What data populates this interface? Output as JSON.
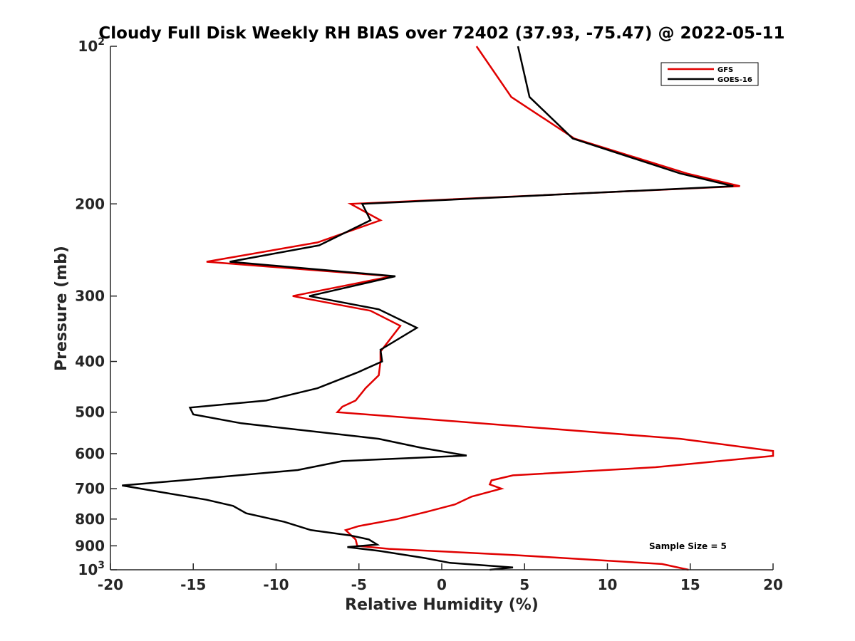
{
  "chart_data": {
    "type": "line",
    "title": "Cloudy Full Disk Weekly RH BIAS over 72402 (37.93, -75.47) @ 2022-05-11",
    "xlabel": "Relative Humidity (%)",
    "ylabel": "Pressure (mb)",
    "xlim": [
      -20,
      20
    ],
    "ylim": [
      100,
      1000
    ],
    "y_scale": "log",
    "y_reversed": true,
    "grid": false,
    "legend_position": "top-right",
    "x_ticks": [
      "-20",
      "-15",
      "-10",
      "-5",
      "0",
      "5",
      "10",
      "15",
      "20"
    ],
    "x_tick_values": [
      -20,
      -15,
      -10,
      -5,
      0,
      5,
      10,
      15,
      20
    ],
    "y_tick_values": [
      100,
      200,
      300,
      400,
      500,
      600,
      700,
      800,
      900,
      1000
    ],
    "y_tick_labels": [
      {
        "base": "10",
        "exp": "2"
      },
      {
        "base": "200",
        "exp": ""
      },
      {
        "base": "300",
        "exp": ""
      },
      {
        "base": "400",
        "exp": ""
      },
      {
        "base": "500",
        "exp": ""
      },
      {
        "base": "600",
        "exp": ""
      },
      {
        "base": "700",
        "exp": ""
      },
      {
        "base": "800",
        "exp": ""
      },
      {
        "base": "900",
        "exp": ""
      },
      {
        "base": "10",
        "exp": "3"
      }
    ],
    "annotation": "Sample Size = 5",
    "series": [
      {
        "name": "GFS",
        "color": "#e00000",
        "points": [
          [
            2.1,
            100
          ],
          [
            4.2,
            125
          ],
          [
            8.0,
            150
          ],
          [
            14.8,
            175
          ],
          [
            18.0,
            185
          ],
          [
            -5.5,
            200
          ],
          [
            -3.7,
            215
          ],
          [
            -7.5,
            237
          ],
          [
            -14.2,
            258
          ],
          [
            -3.0,
            275
          ],
          [
            -9.0,
            300
          ],
          [
            -4.3,
            320
          ],
          [
            -2.5,
            342
          ],
          [
            -3.7,
            383
          ],
          [
            -3.7,
            400
          ],
          [
            -3.8,
            425
          ],
          [
            -4.6,
            450
          ],
          [
            -5.2,
            475
          ],
          [
            -6.0,
            488
          ],
          [
            -6.3,
            500
          ],
          [
            14.4,
            562
          ],
          [
            20.0,
            593
          ],
          [
            20.0,
            606
          ],
          [
            15.6,
            625
          ],
          [
            12.9,
            637
          ],
          [
            4.3,
            660
          ],
          [
            3.0,
            675
          ],
          [
            2.9,
            687
          ],
          [
            3.6,
            700
          ],
          [
            1.8,
            725
          ],
          [
            0.8,
            750
          ],
          [
            -0.9,
            775
          ],
          [
            -2.7,
            800
          ],
          [
            -5.0,
            825
          ],
          [
            -5.8,
            840
          ],
          [
            -5.2,
            875
          ],
          [
            -5.1,
            900
          ],
          [
            -3.2,
            912
          ],
          [
            4.3,
            937
          ],
          [
            13.3,
            975
          ],
          [
            14.9,
            1000
          ]
        ]
      },
      {
        "name": "GOES-16",
        "color": "#000000",
        "points": [
          [
            4.6,
            100
          ],
          [
            5.3,
            125
          ],
          [
            7.9,
            150
          ],
          [
            14.4,
            175
          ],
          [
            17.6,
            185
          ],
          [
            -4.8,
            200
          ],
          [
            -4.3,
            215
          ],
          [
            -7.4,
            240
          ],
          [
            -12.8,
            258
          ],
          [
            -2.8,
            275
          ],
          [
            -8.0,
            300
          ],
          [
            -3.8,
            318
          ],
          [
            -1.5,
            345
          ],
          [
            -3.7,
            380
          ],
          [
            -3.6,
            400
          ],
          [
            -5.1,
            420
          ],
          [
            -7.5,
            450
          ],
          [
            -10.6,
            475
          ],
          [
            -15.2,
            490
          ],
          [
            -15.0,
            505
          ],
          [
            -12.1,
            525
          ],
          [
            -3.8,
            562
          ],
          [
            -1.2,
            585
          ],
          [
            1.5,
            605
          ],
          [
            -6.0,
            620
          ],
          [
            -8.7,
            645
          ],
          [
            -15.7,
            675
          ],
          [
            -19.3,
            690
          ],
          [
            -17.6,
            705
          ],
          [
            -14.2,
            735
          ],
          [
            -12.6,
            755
          ],
          [
            -11.8,
            780
          ],
          [
            -9.5,
            810
          ],
          [
            -7.9,
            840
          ],
          [
            -5.5,
            860
          ],
          [
            -4.4,
            875
          ],
          [
            -3.9,
            895
          ],
          [
            -5.7,
            905
          ],
          [
            -3.8,
            920
          ],
          [
            -1.0,
            950
          ],
          [
            0.5,
            970
          ],
          [
            4.3,
            990
          ],
          [
            2.9,
            1000
          ]
        ]
      }
    ]
  }
}
